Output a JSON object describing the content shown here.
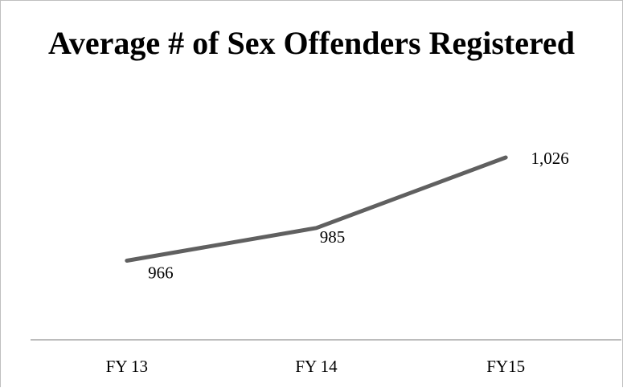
{
  "chart_data": {
    "type": "line",
    "title": "Average # of Sex Offenders Registered",
    "categories": [
      "FY 13",
      "FY 14",
      "FY15"
    ],
    "series": [
      {
        "name": "Average # of Sex Offenders Registered",
        "color": "#606060",
        "values": [
          966,
          985,
          1026
        ],
        "value_labels": [
          "966",
          "985",
          "1,026"
        ]
      }
    ],
    "ylim": [
      920,
      1040
    ],
    "grid": false
  }
}
